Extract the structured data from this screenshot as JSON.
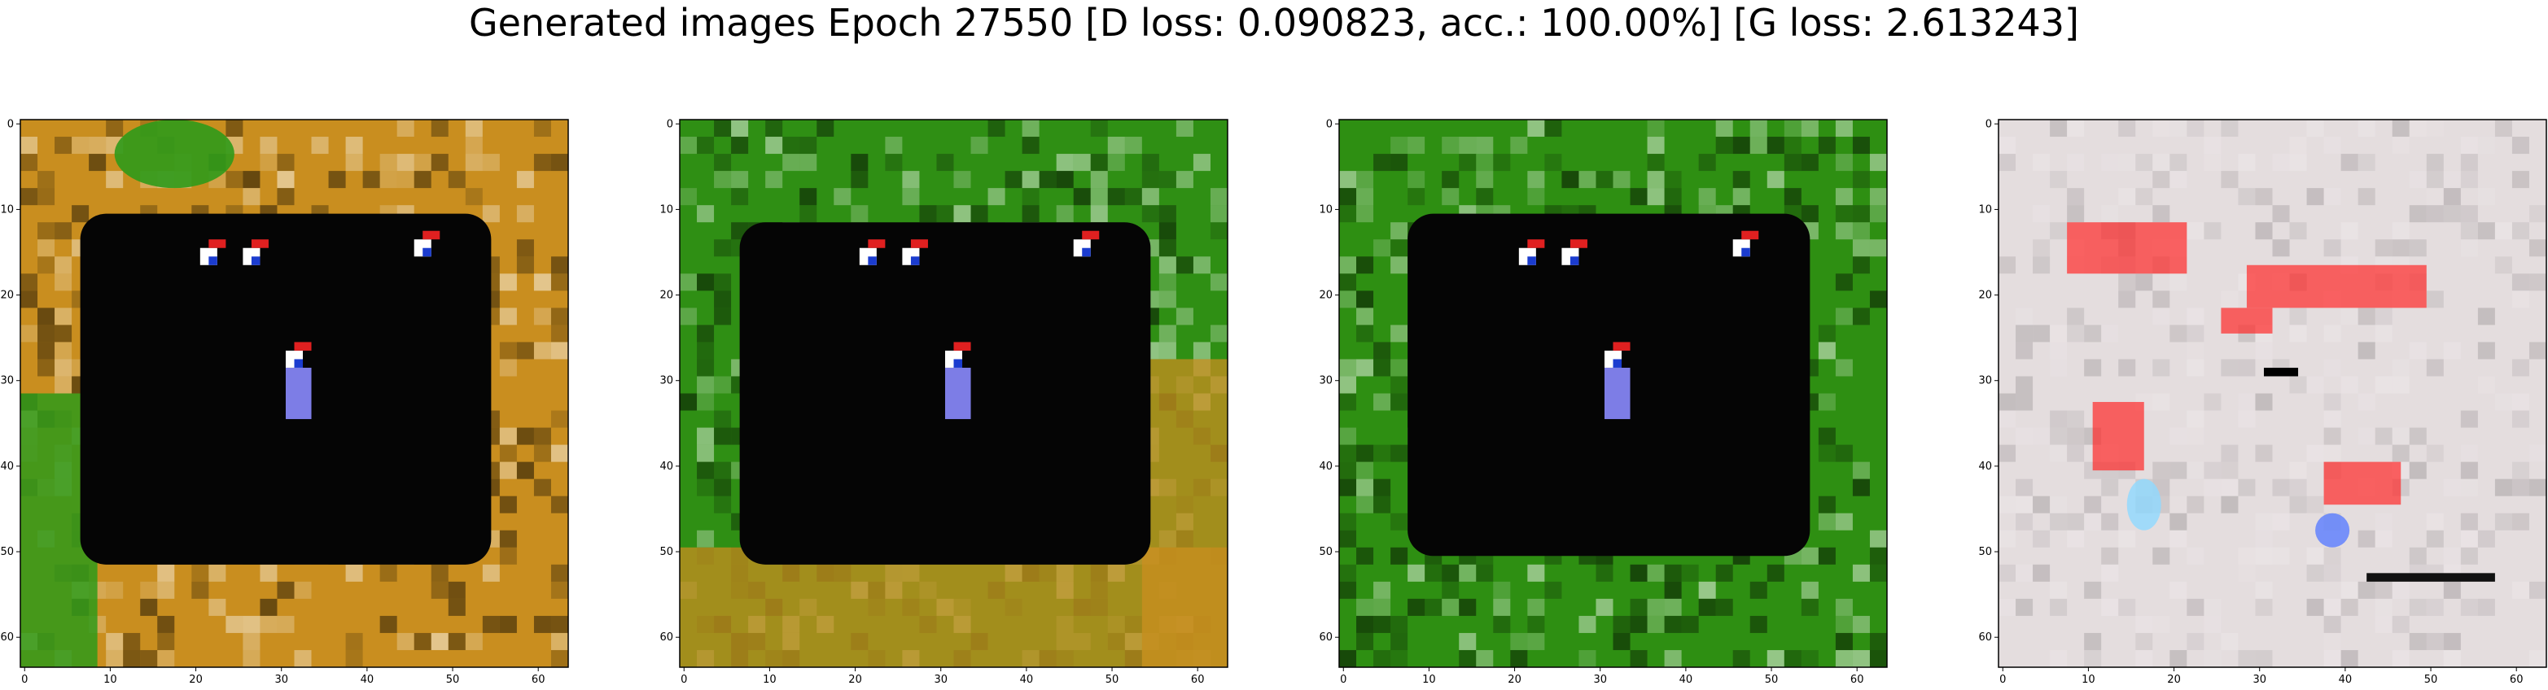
{
  "figure": {
    "title": "Generated images Epoch 27550 [D loss: 0.090823, acc.: 100.00%] [G loss: 2.613243]"
  },
  "chart_data": [
    {
      "type": "heatmap",
      "name": "generated-sample-1",
      "xlim": [
        0,
        63
      ],
      "ylim": [
        63,
        0
      ],
      "xticks": [
        "0",
        "10",
        "20",
        "30",
        "40",
        "50",
        "60"
      ],
      "yticks": [
        "0",
        "10",
        "20",
        "30",
        "40",
        "50",
        "60"
      ],
      "grid": false,
      "colors": {
        "border": "#c98e1f",
        "inner": "#050505",
        "accent": "#2f9a1a"
      }
    },
    {
      "type": "heatmap",
      "name": "generated-sample-2",
      "xlim": [
        0,
        63
      ],
      "ylim": [
        63,
        0
      ],
      "xticks": [
        "0",
        "10",
        "20",
        "30",
        "40",
        "50",
        "60"
      ],
      "yticks": [
        "0",
        "10",
        "20",
        "30",
        "40",
        "50",
        "60"
      ],
      "grid": false,
      "colors": {
        "border": "#2f8f14",
        "inner": "#050505",
        "accent": "#c98e1f"
      }
    },
    {
      "type": "heatmap",
      "name": "generated-sample-3",
      "xlim": [
        0,
        63
      ],
      "ylim": [
        63,
        0
      ],
      "xticks": [
        "0",
        "10",
        "20",
        "30",
        "40",
        "50",
        "60"
      ],
      "yticks": [
        "0",
        "10",
        "20",
        "30",
        "40",
        "50",
        "60"
      ],
      "grid": false,
      "colors": {
        "border": "#2e8f12",
        "inner": "#050505",
        "accent": "#38a11e"
      }
    },
    {
      "type": "heatmap",
      "name": "generated-sample-4",
      "xlim": [
        0,
        63
      ],
      "ylim": [
        63,
        0
      ],
      "xticks": [
        "0",
        "10",
        "20",
        "30",
        "40",
        "50",
        "60"
      ],
      "yticks": [
        "0",
        "10",
        "20",
        "30",
        "40",
        "50",
        "60"
      ],
      "grid": false,
      "colors": {
        "border": "#d9d6d8",
        "inner": "#e8dfe1",
        "accent": "#ff2a2a"
      }
    }
  ]
}
